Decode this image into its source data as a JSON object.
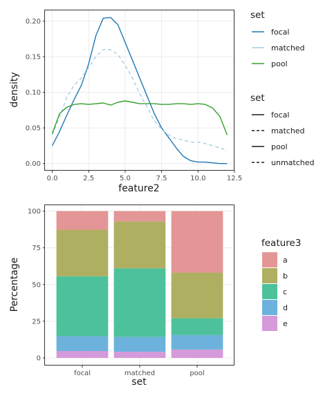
{
  "colors": {
    "focal": "#1f78b4",
    "matched": "#a6cee3",
    "pool": "#33a02c",
    "a": "#e49696",
    "b": "#afaf62",
    "c": "#4dc19b",
    "d": "#6db2dd",
    "e": "#d59ad9"
  },
  "chart_data": [
    {
      "type": "line",
      "xlabel": "feature2",
      "ylabel": "density",
      "xlim": [
        -0.5,
        12.5
      ],
      "ylim": [
        -0.01,
        0.215
      ],
      "x_ticks": [
        0,
        2.5,
        5,
        7.5,
        10,
        12.5
      ],
      "x_tick_labels": [
        "0.0",
        "2.5",
        "5.0",
        "7.5",
        "10.0",
        "12.5"
      ],
      "y_ticks": [
        0,
        0.05,
        0.1,
        0.15,
        0.2
      ],
      "y_tick_labels": [
        "0.00",
        "0.05",
        "0.10",
        "0.15",
        "0.20"
      ],
      "grid": true,
      "series": [
        {
          "name": "focal",
          "linetype": "solid",
          "color_key": "focal",
          "points": [
            [
              0,
              0.025
            ],
            [
              0.5,
              0.045
            ],
            [
              1,
              0.068
            ],
            [
              1.5,
              0.09
            ],
            [
              2,
              0.11
            ],
            [
              2.5,
              0.14
            ],
            [
              3,
              0.18
            ],
            [
              3.5,
              0.204
            ],
            [
              4,
              0.205
            ],
            [
              4.5,
              0.195
            ],
            [
              5,
              0.17
            ],
            [
              5.5,
              0.145
            ],
            [
              6,
              0.12
            ],
            [
              6.5,
              0.095
            ],
            [
              7,
              0.07
            ],
            [
              7.5,
              0.05
            ],
            [
              8,
              0.036
            ],
            [
              8.5,
              0.022
            ],
            [
              9,
              0.01
            ],
            [
              9.5,
              0.004
            ],
            [
              10,
              0.002
            ],
            [
              10.5,
              0.002
            ],
            [
              11,
              0.001
            ],
            [
              11.5,
              0
            ],
            [
              12,
              0
            ]
          ]
        },
        {
          "name": "matched",
          "linetype": "dashed",
          "color_key": "matched",
          "points": [
            [
              0,
              0.04
            ],
            [
              0.5,
              0.065
            ],
            [
              1,
              0.093
            ],
            [
              1.5,
              0.11
            ],
            [
              2,
              0.12
            ],
            [
              2.5,
              0.135
            ],
            [
              3,
              0.15
            ],
            [
              3.5,
              0.16
            ],
            [
              4,
              0.16
            ],
            [
              4.5,
              0.153
            ],
            [
              5,
              0.138
            ],
            [
              5.5,
              0.12
            ],
            [
              6,
              0.098
            ],
            [
              6.5,
              0.08
            ],
            [
              7,
              0.06
            ],
            [
              7.5,
              0.048
            ],
            [
              8,
              0.04
            ],
            [
              8.5,
              0.035
            ],
            [
              9,
              0.033
            ],
            [
              9.5,
              0.03
            ],
            [
              10,
              0.03
            ],
            [
              10.5,
              0.028
            ],
            [
              11,
              0.025
            ],
            [
              11.5,
              0.022
            ],
            [
              12,
              0.018
            ]
          ]
        },
        {
          "name": "pool",
          "linetype": "solid",
          "color_key": "pool",
          "points": [
            [
              0,
              0.042
            ],
            [
              0.5,
              0.07
            ],
            [
              1,
              0.079
            ],
            [
              1.5,
              0.083
            ],
            [
              2,
              0.084
            ],
            [
              2.5,
              0.083
            ],
            [
              3,
              0.084
            ],
            [
              3.5,
              0.085
            ],
            [
              4,
              0.082
            ],
            [
              4.5,
              0.086
            ],
            [
              5,
              0.088
            ],
            [
              5.5,
              0.086
            ],
            [
              6,
              0.084
            ],
            [
              6.5,
              0.084
            ],
            [
              7,
              0.084
            ],
            [
              7.5,
              0.083
            ],
            [
              8,
              0.083
            ],
            [
              8.5,
              0.084
            ],
            [
              9,
              0.084
            ],
            [
              9.5,
              0.083
            ],
            [
              10,
              0.084
            ],
            [
              10.5,
              0.083
            ],
            [
              11,
              0.078
            ],
            [
              11.5,
              0.066
            ],
            [
              12,
              0.04
            ]
          ]
        }
      ],
      "legends": [
        {
          "title": "set",
          "kind": "color",
          "entries": [
            {
              "label": "focal",
              "color_key": "focal"
            },
            {
              "label": "matched",
              "color_key": "matched"
            },
            {
              "label": "pool",
              "color_key": "pool"
            }
          ]
        },
        {
          "title": "set",
          "kind": "linetype",
          "entries": [
            {
              "label": "focal",
              "linetype": "solid"
            },
            {
              "label": "matched",
              "linetype": "dashed"
            },
            {
              "label": "pool",
              "linetype": "solid"
            },
            {
              "label": "unmatched",
              "linetype": "dashed"
            }
          ]
        }
      ]
    },
    {
      "type": "bar",
      "stacked": true,
      "xlabel": "set",
      "ylabel": "Percentage",
      "categories": [
        "focal",
        "matched",
        "pool"
      ],
      "ylim": [
        0,
        100
      ],
      "y_ticks": [
        0,
        25,
        50,
        75,
        100
      ],
      "y_tick_labels": [
        "0",
        "25",
        "50",
        "75",
        "100"
      ],
      "stack_order": [
        "e",
        "d",
        "c",
        "b",
        "a"
      ],
      "series": [
        {
          "name": "a",
          "color_key": "a",
          "values": [
            12.7,
            7,
            41.9
          ]
        },
        {
          "name": "b",
          "color_key": "b",
          "values": [
            31.7,
            32,
            31.1
          ]
        },
        {
          "name": "c",
          "color_key": "c",
          "values": [
            40.8,
            46.7,
            11.4
          ]
        },
        {
          "name": "d",
          "color_key": "d",
          "values": [
            10.1,
            10.1,
            9.9
          ]
        },
        {
          "name": "e",
          "color_key": "e",
          "values": [
            4.7,
            4.2,
            5.7
          ]
        }
      ],
      "legend": {
        "title": "feature3",
        "entries": [
          "a",
          "b",
          "c",
          "d",
          "e"
        ]
      }
    }
  ]
}
